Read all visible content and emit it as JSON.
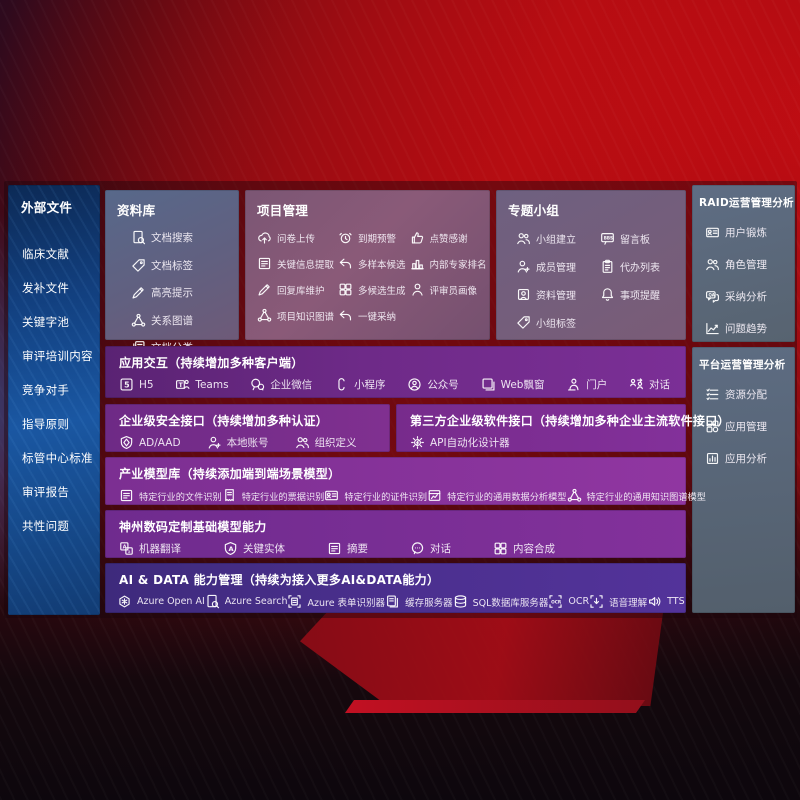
{
  "colors": {
    "background_red": "#b50d14",
    "sidebar_blue": "#1a57a2",
    "panel_slate": "#5c6a7d",
    "row_purple": "#7b2d93",
    "row_indigo": "#4a2d85"
  },
  "sidebar": {
    "title": "外部文件",
    "items": [
      "临床文献",
      "发补文件",
      "关键字池",
      "审评培训内容",
      "竞争对手",
      "指导原则",
      "标管中心标准",
      "审评报告",
      "共性问题"
    ]
  },
  "repository": {
    "title": "资料库",
    "items": [
      {
        "icon": "doc-search",
        "label": "文档搜索"
      },
      {
        "icon": "tag",
        "label": "文档标签"
      },
      {
        "icon": "pen",
        "label": "高亮提示"
      },
      {
        "icon": "network",
        "label": "关系图谱"
      },
      {
        "icon": "doc-category",
        "label": "文档分类"
      }
    ]
  },
  "project": {
    "title": "项目管理",
    "items": [
      {
        "icon": "cloud-upload",
        "label": "问卷上传"
      },
      {
        "icon": "alarm",
        "label": "到期预警"
      },
      {
        "icon": "thumbs-up",
        "label": "点赞感谢"
      },
      {
        "icon": "doc-extract",
        "label": "关键信息提取"
      },
      {
        "icon": "reply-arrow",
        "label": "多样本候选"
      },
      {
        "icon": "ranking",
        "label": "内部专家排名"
      },
      {
        "icon": "pen",
        "label": "回复库维护"
      },
      {
        "icon": "grid",
        "label": "多候选生成"
      },
      {
        "icon": "person",
        "label": "评审员画像"
      },
      {
        "icon": "knowledge-model",
        "label": "项目知识图谱"
      },
      {
        "icon": "adopt",
        "label": "一键采纳"
      }
    ]
  },
  "group": {
    "title": "专题小组",
    "items": [
      {
        "icon": "people",
        "label": "小组建立"
      },
      {
        "icon": "bbs",
        "label": "留言板"
      },
      {
        "icon": "person-add",
        "label": "成员管理"
      },
      {
        "icon": "clipboard",
        "label": "代办列表"
      },
      {
        "icon": "album",
        "label": "资料管理"
      },
      {
        "icon": "bell",
        "label": "事项提醒"
      },
      {
        "icon": "tag",
        "label": "小组标签"
      }
    ]
  },
  "raid": {
    "title": "RAID运营管理分析",
    "items": [
      {
        "icon": "id-card",
        "label": "用户锻炼"
      },
      {
        "icon": "people",
        "label": "角色管理"
      },
      {
        "icon": "chat-qa",
        "label": "采纳分析"
      },
      {
        "icon": "trend",
        "label": "问题趋势"
      }
    ]
  },
  "platform": {
    "title": "平台运营管理分析",
    "items": [
      {
        "icon": "list",
        "label": "资源分配"
      },
      {
        "icon": "app-grid",
        "label": "应用管理"
      },
      {
        "icon": "chart-doc",
        "label": "应用分析"
      }
    ]
  },
  "interaction": {
    "title": "应用交互（持续增加多种客户端）",
    "items": [
      {
        "icon": "h5",
        "label": "H5"
      },
      {
        "icon": "teams",
        "label": "Teams"
      },
      {
        "icon": "wechat",
        "label": "企业微信"
      },
      {
        "icon": "miniprogram",
        "label": "小程序"
      },
      {
        "icon": "official-account",
        "label": "公众号"
      },
      {
        "icon": "web-window",
        "label": "Web飘窗"
      },
      {
        "icon": "portal",
        "label": "门户"
      },
      {
        "icon": "dialog",
        "label": "对话"
      }
    ]
  },
  "security": {
    "title": "企业级安全接口（持续增加多种认证）",
    "items": [
      {
        "icon": "shield",
        "label": "AD/AAD"
      },
      {
        "icon": "local-account",
        "label": "本地账号"
      },
      {
        "icon": "org-custom",
        "label": "组织定义"
      }
    ]
  },
  "third_party": {
    "title": "第三方企业级软件接口（持续增加多种企业主流软件接口）",
    "items": [
      {
        "icon": "api",
        "label": "API自动化设计器"
      }
    ]
  },
  "industry_models": {
    "title": "产业模型库（持续添加端到端场景模型）",
    "items": [
      {
        "icon": "file-recog",
        "label": "特定行业的文件识别"
      },
      {
        "icon": "invoice",
        "label": "特定行业的票据识别"
      },
      {
        "icon": "id-recog",
        "label": "特定行业的证件识别"
      },
      {
        "icon": "data-model",
        "label": "特定行业的通用数据分析模型"
      },
      {
        "icon": "knowledge-model",
        "label": "特定行业的通用知识图谱模型"
      }
    ]
  },
  "base_models": {
    "title": "神州数码定制基础模型能力",
    "items": [
      {
        "icon": "translate",
        "label": "机器翻译"
      },
      {
        "icon": "entity",
        "label": "关键实体"
      },
      {
        "icon": "summary",
        "label": "摘要"
      },
      {
        "icon": "chat-dots",
        "label": "对话"
      },
      {
        "icon": "compose",
        "label": "内容合成"
      }
    ]
  },
  "ai_data": {
    "title": "AI & DATA 能力管理（持续为接入更多AI&DATA能力）",
    "items": [
      {
        "icon": "openai",
        "label": "Azure Open AI"
      },
      {
        "icon": "azure-search",
        "label": "Azure Search"
      },
      {
        "icon": "form-recognizer",
        "label": "Azure 表单识别器"
      },
      {
        "icon": "cache-server",
        "label": "缓存服务器"
      },
      {
        "icon": "sql-db",
        "label": "SQL数据库服务器"
      },
      {
        "icon": "ocr",
        "label": "OCR"
      },
      {
        "icon": "speech",
        "label": "语音理解"
      },
      {
        "icon": "tts",
        "label": "TTS"
      }
    ]
  }
}
